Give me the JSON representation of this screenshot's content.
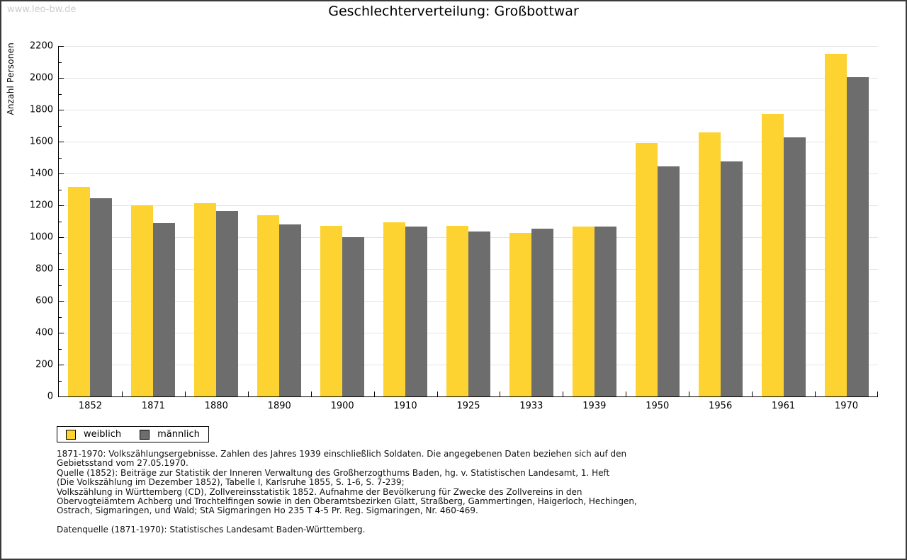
{
  "watermark": "www.leo-bw.de",
  "header": {
    "title": "Geschlechterverteilung: Großbottwar"
  },
  "chart_data": {
    "type": "bar",
    "title": "Geschlechterverteilung: Großbottwar",
    "xlabel": "",
    "ylabel": "Anzahl Personen",
    "categories": [
      "1852",
      "1871",
      "1880",
      "1890",
      "1900",
      "1910",
      "1925",
      "1933",
      "1939",
      "1950",
      "1956",
      "1961",
      "1970"
    ],
    "series": [
      {
        "name": "weiblich",
        "color": "#FCD331",
        "values": [
          1315,
          1200,
          1212,
          1140,
          1073,
          1095,
          1070,
          1025,
          1068,
          1590,
          1660,
          1775,
          2152
        ]
      },
      {
        "name": "männlich",
        "color": "#6D6D6D",
        "values": [
          1245,
          1090,
          1163,
          1078,
          1000,
          1065,
          1035,
          1055,
          1065,
          1445,
          1475,
          1625,
          2005
        ]
      }
    ],
    "ylim": [
      0,
      2200
    ],
    "yticks": [
      0,
      200,
      400,
      600,
      800,
      1000,
      1200,
      1400,
      1600,
      1800,
      2000,
      2200
    ],
    "minor_tick_step": 100,
    "grid": true,
    "gridline_color": "#e4e4e4",
    "legend_position": "bottom-left"
  },
  "legend": {
    "items": [
      {
        "label": "weiblich",
        "color": "#FCD331"
      },
      {
        "label": "männlich",
        "color": "#6D6D6D"
      }
    ]
  },
  "footnote": {
    "lines": [
      "1871-1970: Volkszählungsergebnisse. Zahlen des Jahres 1939 einschließlich Soldaten. Die angegebenen Daten beziehen sich auf den",
      "Gebietsstand vom 27.05.1970.",
      "Quelle (1852): Beiträge zur Statistik der Inneren Verwaltung des Großherzogthums Baden, hg. v. Statistischen Landesamt, 1. Heft",
      "(Die Volkszählung im Dezember 1852), Tabelle I, Karlsruhe 1855, S. 1-6, S. 7-239;",
      "Volkszählung in Württemberg (CD), Zollvereinsstatistik 1852. Aufnahme der Bevölkerung für Zwecke des Zollvereins in den",
      "Obervogteiämtern Achberg und Trochtelfingen sowie in den Oberamtsbezirken Glatt, Straßberg, Gammertingen, Haigerloch, Hechingen,",
      "Ostrach, Sigmaringen, und Wald; StA Sigmaringen Ho 235 T 4-5 Pr. Reg. Sigmaringen, Nr. 460-469.",
      "",
      "Datenquelle (1871-1970): Statistisches Landesamt Baden-Württemberg."
    ]
  },
  "colors": {
    "female_bar": "#FCD331",
    "male_bar": "#6D6D6D",
    "gridline": "#e4e4e4",
    "axis": "#000000",
    "watermark": "#cccccc",
    "frame_border": "#3a3a3a"
  }
}
